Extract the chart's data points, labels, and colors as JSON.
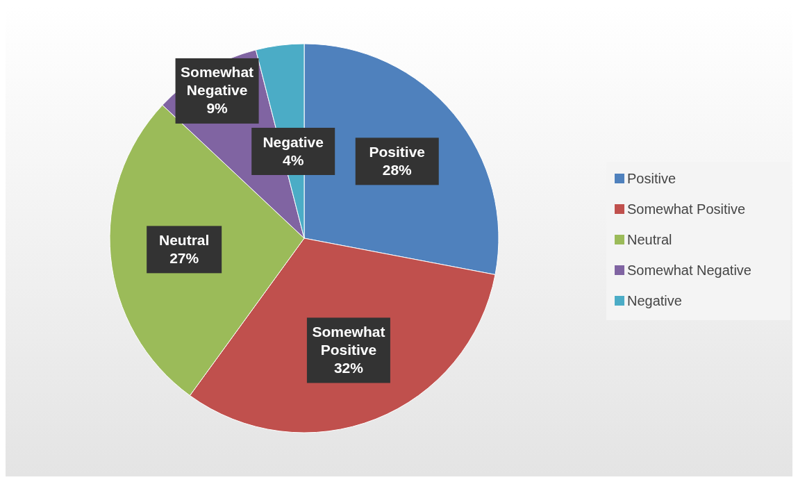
{
  "chart_data": {
    "type": "pie",
    "categories": [
      "Positive",
      "Somewhat Positive",
      "Neutral",
      "Somewhat Negative",
      "Negative"
    ],
    "values": [
      28,
      32,
      27,
      9,
      4
    ],
    "value_labels": [
      "28%",
      "32%",
      "27%",
      "9%",
      "4%"
    ],
    "colors": [
      "#4f81bd",
      "#c0504d",
      "#9bbb59",
      "#8064a2",
      "#4bacc6"
    ],
    "legend": "right"
  }
}
